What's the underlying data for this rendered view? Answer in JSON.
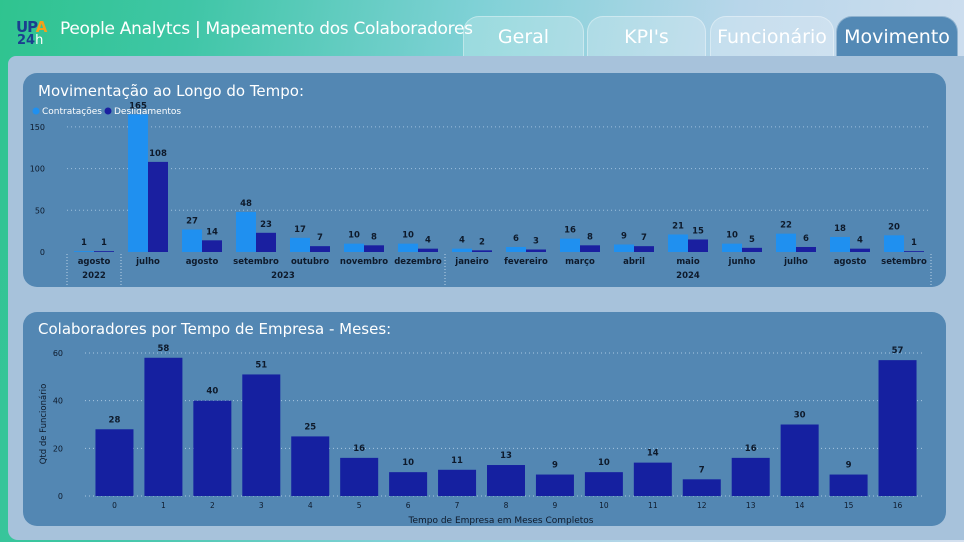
{
  "header": {
    "logo_text": "UPA 24h",
    "title": "People Analytcs | Mapeamento dos Colaboradores",
    "tabs": [
      {
        "label": "Geral",
        "active": false
      },
      {
        "label": "KPI's",
        "active": false
      },
      {
        "label": "Funcionário",
        "active": false
      },
      {
        "label": "Movimento",
        "active": true
      }
    ]
  },
  "colors": {
    "contratacoes": "#1f90f0",
    "desligamentos": "#1a1fa0",
    "tempo_bars": "#1520a0",
    "card": "#5387b3"
  },
  "chart_data": [
    {
      "type": "bar",
      "title": "Movimentação ao Longo do Tempo:",
      "legend_position": "top-left",
      "categories": [
        "agosto",
        "julho",
        "agosto",
        "setembro",
        "outubro",
        "novembro",
        "dezembro",
        "janeiro",
        "fevereiro",
        "março",
        "abril",
        "maio",
        "junho",
        "julho",
        "agosto",
        "setembro"
      ],
      "year_groups": [
        {
          "label": "2022",
          "count": 1
        },
        {
          "label": "2023",
          "count": 6
        },
        {
          "label": "2024",
          "count": 9
        }
      ],
      "series": [
        {
          "name": "Contratações",
          "values": [
            1,
            165,
            27,
            48,
            17,
            10,
            10,
            4,
            6,
            16,
            9,
            21,
            10,
            22,
            18,
            20
          ]
        },
        {
          "name": "Desligamentos",
          "values": [
            1,
            108,
            14,
            23,
            7,
            8,
            4,
            2,
            3,
            8,
            7,
            15,
            5,
            6,
            4,
            1
          ]
        }
      ],
      "yticks": [
        0,
        50,
        100,
        150
      ],
      "ylim": [
        0,
        175
      ],
      "grid": true
    },
    {
      "type": "bar",
      "title": "Colaboradores por Tempo de Empresa - Meses:",
      "xlabel": "Tempo de Empresa em Meses Completos",
      "ylabel": "Qtd de Funcionário",
      "categories": [
        "0",
        "1",
        "2",
        "3",
        "4",
        "5",
        "6",
        "7",
        "8",
        "9",
        "10",
        "11",
        "12",
        "13",
        "14",
        "15",
        "16"
      ],
      "values": [
        28,
        58,
        40,
        51,
        25,
        16,
        10,
        11,
        13,
        9,
        10,
        14,
        7,
        16,
        30,
        9,
        57
      ],
      "yticks": [
        0,
        20,
        40,
        60
      ],
      "ylim": [
        0,
        60
      ],
      "grid": true
    }
  ]
}
